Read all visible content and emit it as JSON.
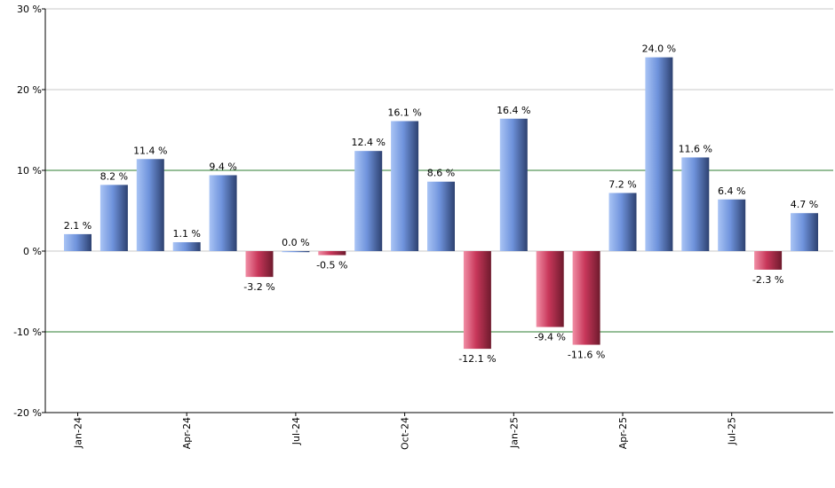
{
  "chart_data": {
    "type": "bar",
    "categories": [
      "Jan-24",
      "Feb-24",
      "Mar-24",
      "Apr-24",
      "May-24",
      "Jun-24",
      "Jul-24",
      "Aug-24",
      "Sep-24",
      "Oct-24",
      "Nov-24",
      "Dec-24",
      "Jan-25",
      "Feb-25",
      "Mar-25",
      "Apr-25",
      "May-25",
      "Jun-25",
      "Jul-25",
      "Aug-25",
      "Sep-25"
    ],
    "values": [
      2.1,
      8.2,
      11.4,
      1.1,
      9.4,
      -3.2,
      0.0,
      -0.5,
      12.4,
      16.1,
      8.6,
      -12.1,
      16.4,
      -9.4,
      -11.6,
      7.2,
      24.0,
      11.6,
      6.4,
      -2.3,
      4.7
    ],
    "value_labels": [
      "2.1 %",
      "8.2 %",
      "11.4 %",
      "1.1 %",
      "9.4 %",
      "-3.2 %",
      "0.0 %",
      "-0.5 %",
      "12.4 %",
      "16.1 %",
      "8.6 %",
      "-12.1 %",
      "16.4 %",
      "-9.4 %",
      "-11.6 %",
      "7.2 %",
      "24.0 %",
      "11.6 %",
      "6.4 %",
      "-2.3 %",
      "4.7 %"
    ],
    "x_tick_labels": [
      "Jan-24",
      "Apr-24",
      "Jul-24",
      "Oct-24",
      "Jan-25",
      "Apr-25",
      "Jul-25"
    ],
    "x_tick_indices": [
      0,
      3,
      6,
      9,
      12,
      15,
      18
    ],
    "y_ticks": [
      30,
      20,
      10,
      0,
      -10,
      -20
    ],
    "y_tick_labels": [
      "30 %",
      "20 %",
      "10 %",
      "0 %",
      "-10 %",
      "-20 %"
    ],
    "ylim": [
      -20,
      30
    ],
    "highlight_lines": [
      10,
      -10
    ],
    "grid": true,
    "title": "",
    "xlabel": "",
    "ylabel": "",
    "colors": {
      "positive_light": "#a9c4f5",
      "positive_mid": "#6f93dc",
      "positive_dark": "#2d4170",
      "negative_light": "#f18fa6",
      "negative_mid": "#c8375a",
      "negative_dark": "#6e1a2d",
      "grid": "#c8c8c8",
      "highlight_line": "#2e7d32",
      "axis": "#000000"
    }
  }
}
